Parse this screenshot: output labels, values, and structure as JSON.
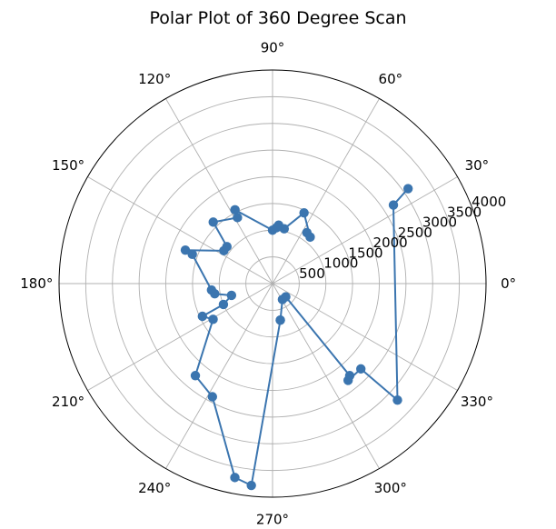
{
  "chart_data": {
    "type": "line",
    "projection": "polar",
    "title": "Polar Plot of 360 Degree Scan",
    "angle_ticks": [
      "0°",
      "30°",
      "60°",
      "90°",
      "120°",
      "150°",
      "180°",
      "210°",
      "240°",
      "270°",
      "300°",
      "330°"
    ],
    "angle_tick_degrees": [
      0,
      30,
      60,
      90,
      120,
      150,
      180,
      210,
      240,
      270,
      300,
      330
    ],
    "radial_ticks": [
      500,
      1000,
      1500,
      2000,
      2500,
      3000,
      3500,
      4000
    ],
    "radial_tick_labels": [
      "500",
      "1000",
      "1500",
      "2000",
      "2500",
      "3000",
      "3500",
      "4000"
    ],
    "radial_label_angle_deg": 22.5,
    "rlim": [
      0,
      4000
    ],
    "grid": true,
    "color": "#3b75af",
    "marker": "circle",
    "series": [
      {
        "theta_deg": [
          56,
          51,
          66,
          78,
          84,
          86,
          90,
          117,
          118,
          134,
          141,
          146,
          159,
          160,
          186,
          190,
          196,
          203,
          205,
          211,
          230,
          242,
          259,
          264,
          282,
          282,
          302,
          315,
          310,
          308,
          316,
          317,
          33,
          35
        ],
        "r": [
          1150,
          1120,
          1450,
          1050,
          1100,
          1050,
          1000,
          1550,
          1400,
          1600,
          1100,
          1100,
          1750,
          1600,
          1150,
          1100,
          800,
          1000,
          1450,
          1300,
          2250,
          2400,
          3700,
          3800,
          700,
          700,
          350,
          350,
          2250,
          2300,
          2300,
          3200,
          2700,
          3100
        ]
      }
    ]
  }
}
